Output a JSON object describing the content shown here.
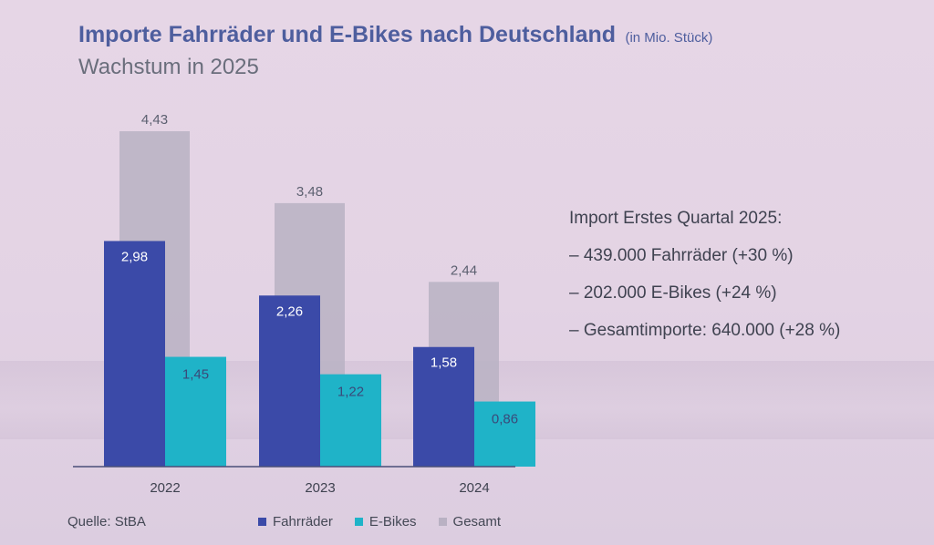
{
  "header": {
    "title": "Importe Fahrräder und E-Bikes nach Deutschland",
    "unit": "(in Mio. Stück)",
    "subtitle": "Wachstum in 2025"
  },
  "notes": {
    "heading": "Import Erstes Quartal 2025:",
    "lines": [
      "– 439.000 Fahrräder (+30 %)",
      "– 202.000 E-Bikes (+24 %)",
      "– Gesamtimporte: 640.000 (+28 %)"
    ]
  },
  "source": "Quelle: StBA",
  "colors": {
    "fahrraeder": "#3b4aa8",
    "ebikes": "#1fb3c8",
    "gesamt": "#b9b1c3",
    "axis": "#4a4f78"
  },
  "chart_data": {
    "type": "bar",
    "categories": [
      "2022",
      "2023",
      "2024"
    ],
    "series": [
      {
        "name": "Fahrräder",
        "values": [
          2.98,
          2.26,
          1.58
        ],
        "labels": [
          "2,98",
          "2,26",
          "1,58"
        ],
        "color": "#3b4aa8"
      },
      {
        "name": "E-Bikes",
        "values": [
          1.45,
          1.22,
          0.86
        ],
        "labels": [
          "1,45",
          "1,22",
          "0,86"
        ],
        "color": "#1fb3c8"
      },
      {
        "name": "Gesamt",
        "values": [
          4.43,
          3.48,
          2.44
        ],
        "labels": [
          "4,43",
          "3,48",
          "2,44"
        ],
        "color": "#b9b1c3"
      }
    ],
    "ylim": [
      0,
      4.43
    ],
    "grid": false,
    "legend": "bottom"
  }
}
